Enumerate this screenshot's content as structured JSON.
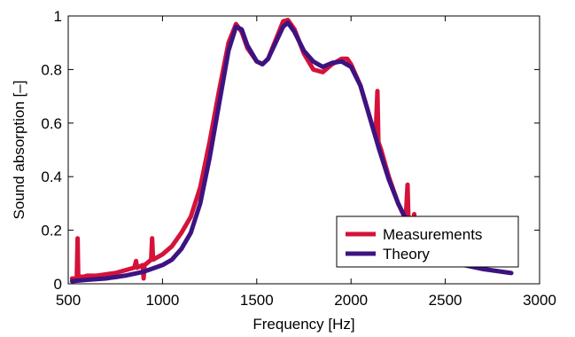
{
  "chart_data": {
    "type": "line",
    "xlabel": "Frequency [Hz]",
    "ylabel": "Sound absorption [–]",
    "xlim": [
      500,
      3000
    ],
    "ylim": [
      0,
      1
    ],
    "xticks": [
      500,
      1000,
      1500,
      2000,
      2500,
      3000
    ],
    "yticks": [
      0,
      0.2,
      0.4,
      0.6,
      0.8,
      1
    ],
    "xtick_labels": [
      "500",
      "1000",
      "1500",
      "2000",
      "2500",
      "3000"
    ],
    "ytick_labels": [
      "0",
      "0.2",
      "0.4",
      "0.6",
      "0.8",
      "1"
    ],
    "grid": false,
    "legend_position": "bottom-right",
    "series": [
      {
        "name": "Measurements",
        "color": "#d5123a",
        "points": [
          [
            520,
            0.02
          ],
          [
            545,
            0.02
          ],
          [
            550,
            0.17
          ],
          [
            553,
            0.03
          ],
          [
            575,
            0.025
          ],
          [
            600,
            0.03
          ],
          [
            650,
            0.03
          ],
          [
            700,
            0.035
          ],
          [
            750,
            0.04
          ],
          [
            800,
            0.05
          ],
          [
            850,
            0.06
          ],
          [
            860,
            0.085
          ],
          [
            865,
            0.06
          ],
          [
            895,
            0.07
          ],
          [
            900,
            0.02
          ],
          [
            905,
            0.07
          ],
          [
            940,
            0.09
          ],
          [
            945,
            0.17
          ],
          [
            950,
            0.09
          ],
          [
            1000,
            0.11
          ],
          [
            1050,
            0.14
          ],
          [
            1100,
            0.19
          ],
          [
            1150,
            0.25
          ],
          [
            1200,
            0.36
          ],
          [
            1250,
            0.53
          ],
          [
            1300,
            0.72
          ],
          [
            1350,
            0.9
          ],
          [
            1390,
            0.97
          ],
          [
            1420,
            0.94
          ],
          [
            1450,
            0.88
          ],
          [
            1500,
            0.83
          ],
          [
            1530,
            0.82
          ],
          [
            1560,
            0.84
          ],
          [
            1600,
            0.91
          ],
          [
            1640,
            0.98
          ],
          [
            1665,
            0.985
          ],
          [
            1700,
            0.95
          ],
          [
            1750,
            0.86
          ],
          [
            1800,
            0.8
          ],
          [
            1850,
            0.79
          ],
          [
            1900,
            0.82
          ],
          [
            1950,
            0.84
          ],
          [
            1980,
            0.84
          ],
          [
            2000,
            0.82
          ],
          [
            2050,
            0.74
          ],
          [
            2080,
            0.67
          ],
          [
            2100,
            0.62
          ],
          [
            2130,
            0.55
          ],
          [
            2140,
            0.72
          ],
          [
            2145,
            0.53
          ],
          [
            2160,
            0.5
          ],
          [
            2200,
            0.4
          ],
          [
            2250,
            0.3
          ],
          [
            2290,
            0.24
          ],
          [
            2300,
            0.37
          ],
          [
            2305,
            0.23
          ],
          [
            2330,
            0.22
          ],
          [
            2335,
            0.26
          ],
          [
            2340,
            0.21
          ],
          [
            2380,
            0.17
          ],
          [
            2450,
            0.13
          ],
          [
            2500,
            0.11
          ]
        ]
      },
      {
        "name": "Theory",
        "color": "#3d1382",
        "points": [
          [
            520,
            0.01
          ],
          [
            600,
            0.015
          ],
          [
            700,
            0.02
          ],
          [
            800,
            0.03
          ],
          [
            900,
            0.045
          ],
          [
            1000,
            0.07
          ],
          [
            1050,
            0.09
          ],
          [
            1100,
            0.13
          ],
          [
            1150,
            0.19
          ],
          [
            1200,
            0.3
          ],
          [
            1250,
            0.47
          ],
          [
            1300,
            0.67
          ],
          [
            1350,
            0.87
          ],
          [
            1390,
            0.96
          ],
          [
            1420,
            0.95
          ],
          [
            1450,
            0.89
          ],
          [
            1500,
            0.83
          ],
          [
            1530,
            0.82
          ],
          [
            1560,
            0.84
          ],
          [
            1600,
            0.9
          ],
          [
            1640,
            0.96
          ],
          [
            1665,
            0.975
          ],
          [
            1700,
            0.94
          ],
          [
            1750,
            0.87
          ],
          [
            1800,
            0.83
          ],
          [
            1850,
            0.81
          ],
          [
            1900,
            0.825
          ],
          [
            1950,
            0.83
          ],
          [
            2000,
            0.81
          ],
          [
            2050,
            0.74
          ],
          [
            2100,
            0.62
          ],
          [
            2150,
            0.5
          ],
          [
            2200,
            0.39
          ],
          [
            2250,
            0.3
          ],
          [
            2300,
            0.23
          ],
          [
            2350,
            0.18
          ],
          [
            2400,
            0.14
          ],
          [
            2450,
            0.11
          ],
          [
            2500,
            0.09
          ],
          [
            2600,
            0.07
          ],
          [
            2700,
            0.055
          ],
          [
            2800,
            0.045
          ],
          [
            2850,
            0.04
          ]
        ]
      }
    ]
  }
}
